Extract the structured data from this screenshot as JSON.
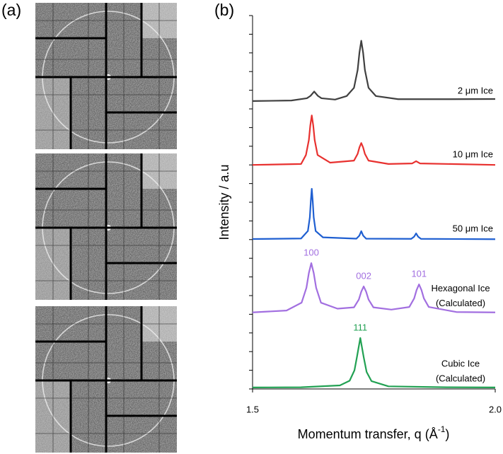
{
  "panel_labels": [
    "(a)",
    "(b)"
  ],
  "chart_data": {
    "type": "line",
    "y_label": "Intensity / a.u",
    "x_label": {
      "text": "Momentum transfer, q (Å",
      "sup": "-1",
      "tail": ")"
    },
    "xlim": [
      1.5,
      2.0
    ],
    "xticks": [
      1.5,
      {
        "value": 2.0,
        "label": "2.0"
      }
    ],
    "ylim": [
      0,
      20
    ],
    "yticks": [
      0,
      1,
      2,
      3,
      4,
      5,
      6,
      7,
      8,
      9,
      10,
      11,
      12,
      13,
      14,
      15,
      16,
      17,
      18,
      19,
      20
    ],
    "series": [
      {
        "name": "2 μm Ice",
        "color": "#404040",
        "x": [
          1.5,
          1.58,
          1.612,
          1.6195,
          1.627,
          1.6345,
          1.642,
          1.67,
          1.694,
          1.709,
          1.7165,
          1.72025,
          1.724,
          1.72775,
          1.7315,
          1.739,
          1.754,
          1.8,
          1.9,
          2.0
        ],
        "values": [
          15.42,
          15.45,
          15.57,
          15.7,
          15.93,
          15.7,
          15.57,
          15.5,
          15.69,
          16.13,
          17.08,
          18.02,
          18.65,
          18.02,
          17.08,
          16.13,
          15.69,
          15.52,
          15.52,
          15.53
        ]
      },
      {
        "name": "10 μm Ice",
        "color": "#e8312f",
        "x": [
          1.5,
          1.6,
          1.61,
          1.616,
          1.619,
          1.622,
          1.625,
          1.628,
          1.634,
          1.66,
          1.709,
          1.7165,
          1.72025,
          1.724,
          1.72775,
          1.7315,
          1.739,
          1.78,
          1.829,
          1.837,
          1.845,
          2.0
        ],
        "values": [
          12.0,
          12.05,
          12.53,
          13.33,
          14.12,
          14.65,
          14.12,
          13.33,
          12.53,
          12.12,
          12.23,
          12.59,
          12.94,
          13.17,
          12.94,
          12.59,
          12.23,
          12.05,
          12.08,
          12.2,
          12.08,
          12.0
        ]
      },
      {
        "name": "50 μm Ice",
        "color": "#1f5fd1",
        "x": [
          1.5,
          1.6,
          1.614,
          1.618,
          1.62,
          1.622,
          1.624,
          1.626,
          1.63,
          1.645,
          1.714,
          1.72,
          1.724,
          1.728,
          1.734,
          1.827,
          1.833,
          1.837,
          1.841,
          1.847,
          2.0
        ],
        "values": [
          8.03,
          8.06,
          8.46,
          9.19,
          10.05,
          10.72,
          10.05,
          9.19,
          8.46,
          8.12,
          8.05,
          8.21,
          8.45,
          8.21,
          8.05,
          8.04,
          8.16,
          8.33,
          8.16,
          8.04,
          8.02
        ]
      },
      {
        "name": "Hexagonal Ice",
        "note": "(Calculated)",
        "color": "#a26fe0",
        "x": [
          1.5,
          1.57,
          1.601,
          1.611,
          1.616,
          1.621,
          1.626,
          1.631,
          1.641,
          1.675,
          1.709,
          1.719,
          1.724,
          1.729,
          1.734,
          1.739,
          1.749,
          1.786,
          1.823,
          1.833,
          1.838,
          1.843,
          1.848,
          1.853,
          1.863,
          1.92,
          2.0
        ],
        "values": [
          4.1,
          4.2,
          4.62,
          5.42,
          6.21,
          6.74,
          6.21,
          5.42,
          4.62,
          4.3,
          4.37,
          4.79,
          5.21,
          5.49,
          5.21,
          4.79,
          4.37,
          4.25,
          4.39,
          4.85,
          5.3,
          5.6,
          5.3,
          4.85,
          4.39,
          4.12,
          4.1
        ],
        "peak_labels": [
          {
            "text": "100",
            "x": 1.621
          },
          {
            "text": "002",
            "x": 1.729
          },
          {
            "text": "101",
            "x": 1.843
          }
        ]
      },
      {
        "name": "Cubic Ice",
        "note": "(Calculated)",
        "color": "#22a153",
        "x": [
          1.5,
          1.6,
          1.68,
          1.7,
          1.71,
          1.715,
          1.722,
          1.729,
          1.735,
          1.745,
          1.78,
          1.9,
          2.0
        ],
        "values": [
          0.08,
          0.09,
          0.19,
          0.44,
          1.0,
          1.7,
          2.73,
          1.7,
          0.91,
          0.42,
          0.14,
          0.09,
          0.08
        ],
        "peak_labels": [
          {
            "text": "111",
            "x": 1.722
          }
        ]
      }
    ]
  }
}
